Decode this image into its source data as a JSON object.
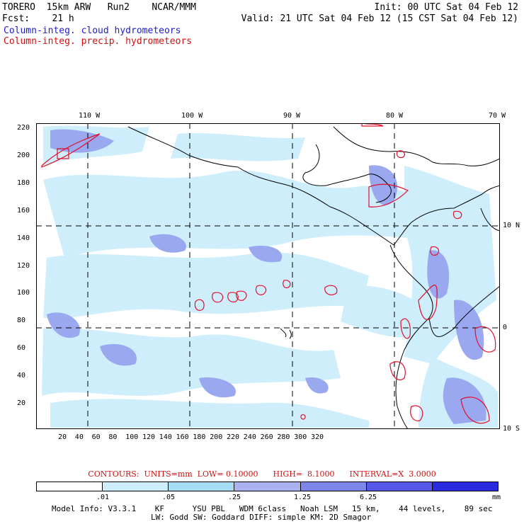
{
  "header": {
    "line1_left": "TORERO  15km ARW   Run2    NCAR/MMM",
    "line1_right": "Init: 00 UTC Sat 04 Feb 12",
    "line2_left": "Fcst:    21 h",
    "line2_right": "Valid: 21 UTC Sat 04 Feb 12 (15 CST Sat 04 Feb 12)",
    "field1": "Column-integ. cloud hydrometeors",
    "field2": "Column-integ. precip. hydrometeors"
  },
  "map": {
    "x_ticks": [
      "20",
      "40",
      "60",
      "80",
      "100",
      "120",
      "140",
      "160",
      "180",
      "200",
      "220",
      "240",
      "260",
      "280",
      "300",
      "320"
    ],
    "y_ticks": [
      "220",
      "200",
      "180",
      "160",
      "140",
      "120",
      "100",
      "80",
      "60",
      "40",
      "20"
    ],
    "lon_labels": [
      "110 W",
      "100 W",
      "90 W",
      "80 W",
      "70 W"
    ],
    "lat_labels": [
      "10 N",
      "0",
      "10 S"
    ],
    "colors": {
      "cloud_light": "#cfeefc",
      "cloud_medium": "#9aa8f0",
      "land_line": "#000000",
      "precip_contour": "#e0102a",
      "grid_line": "#000000"
    }
  },
  "legend": {
    "contours_text": "CONTOURS:  UNITS=mm  LOW= 0.10000      HIGH=  8.1000      INTERVAL=X  3.0000",
    "bins": [
      ".01",
      ".05",
      ".25",
      "1.25",
      "6.25"
    ],
    "unit": "mm",
    "colors": [
      "#ffffff",
      "#cdeefb",
      "#a7ddf4",
      "#aab2ef",
      "#7f86ea",
      "#5858e8",
      "#2a2ae0"
    ]
  },
  "footer": {
    "line1": "Model Info: V3.3.1    KF      YSU PBL   WDM 6class   Noah LSM   15 km,    44 levels,    89 sec",
    "line2": "LW: Godd SW: Goddard DIFF: simple KM: 2D Smagor"
  }
}
